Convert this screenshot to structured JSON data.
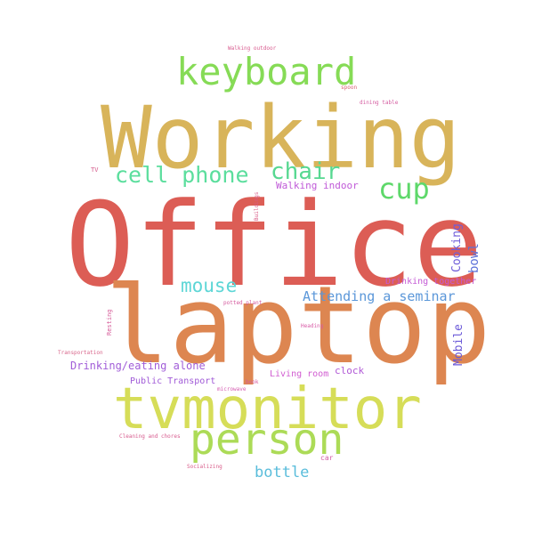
{
  "word_cloud": {
    "words": [
      {
        "text": "Office",
        "color": "#dc5d55"
      },
      {
        "text": "Working",
        "color": "#d8b45a"
      },
      {
        "text": "laptop",
        "color": "#dd8651"
      },
      {
        "text": "tvmonitor",
        "color": "#d6dd58"
      },
      {
        "text": "person",
        "color": "#acdb57"
      },
      {
        "text": "keyboard",
        "color": "#86db56"
      },
      {
        "text": "cell phone",
        "color": "#5bde9d"
      },
      {
        "text": "chair",
        "color": "#57d891"
      },
      {
        "text": "cup",
        "color": "#5ed86a"
      },
      {
        "text": "mouse",
        "color": "#5dd6d6"
      },
      {
        "text": "bottle",
        "color": "#5abddb"
      },
      {
        "text": "Attending a seminar",
        "color": "#5b97d9"
      },
      {
        "text": "Walking indoor",
        "color": "#c05ad8"
      },
      {
        "text": "Cooking",
        "color": "#6f5dd9"
      },
      {
        "text": "bowl",
        "color": "#5d72d9"
      },
      {
        "text": "Mobile",
        "color": "#6a58d8"
      },
      {
        "text": "Drinking together",
        "color": "#c45bd5"
      },
      {
        "text": "Drinking/eating alone",
        "color": "#a15dd8"
      },
      {
        "text": "Living room",
        "color": "#d15cd1"
      },
      {
        "text": "clock",
        "color": "#b15ad6"
      },
      {
        "text": "Public Transport",
        "color": "#a05ad7"
      },
      {
        "text": "Walking outdoor",
        "color": "#d85a8e"
      },
      {
        "text": "spoon",
        "color": "#d95c70"
      },
      {
        "text": "dining table",
        "color": "#d45ca0"
      },
      {
        "text": "TV",
        "color": "#d45a8b"
      },
      {
        "text": "Buildings",
        "color": "#d85a86"
      },
      {
        "text": "potted plant",
        "color": "#d45a9e"
      },
      {
        "text": "Heading",
        "color": "#d85aa6"
      },
      {
        "text": "Resting",
        "color": "#d65a98"
      },
      {
        "text": "Transportation",
        "color": "#d8658a"
      },
      {
        "text": "book",
        "color": "#d55aa0"
      },
      {
        "text": "microwave",
        "color": "#d45ab0"
      },
      {
        "text": "Cleaning and chores",
        "color": "#d75b8e"
      },
      {
        "text": "car",
        "color": "#d35ba5"
      },
      {
        "text": "Socializing",
        "color": "#d85c8a"
      }
    ]
  }
}
